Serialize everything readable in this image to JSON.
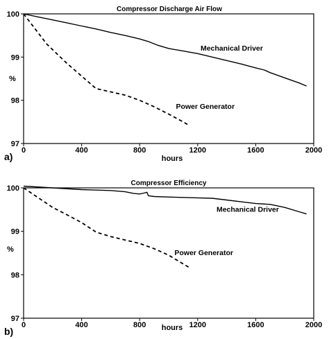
{
  "chart_data": [
    {
      "panel_label": "a)",
      "type": "line",
      "title": "Compressor Discharge Air Flow",
      "xlabel": "hours",
      "ylabel": "%",
      "xlim": [
        0,
        2000
      ],
      "ylim": [
        97,
        100
      ],
      "xticks": [
        "0",
        "400",
        "800",
        "1200",
        "1600",
        "2000"
      ],
      "yticks": [
        "97",
        "98",
        "99",
        "100"
      ],
      "grid": false,
      "series": [
        {
          "name": "Mechanical Driver",
          "style": "solid",
          "x": [
            0,
            100,
            200,
            300,
            400,
            500,
            600,
            700,
            800,
            860,
            920,
            1000,
            1100,
            1200,
            1300,
            1400,
            1500,
            1600,
            1660,
            1700,
            1800,
            1900,
            1950
          ],
          "y": [
            100,
            99.93,
            99.86,
            99.79,
            99.72,
            99.65,
            99.57,
            99.5,
            99.42,
            99.36,
            99.28,
            99.2,
            99.14,
            99.08,
            99.0,
            98.92,
            98.84,
            98.75,
            98.7,
            98.64,
            98.52,
            98.4,
            98.33
          ]
        },
        {
          "name": "Power Generator",
          "style": "dashed",
          "x": [
            0,
            160,
            300,
            500,
            700,
            800,
            900,
            1000,
            1100,
            1140
          ],
          "y": [
            100,
            99.3,
            98.85,
            98.27,
            98.12,
            98.0,
            97.85,
            97.68,
            97.5,
            97.42
          ]
        }
      ],
      "annotations": [
        {
          "text": "Mechanical Driver",
          "x": 1220,
          "y": 99.15
        },
        {
          "text": "Power Generator",
          "x": 1050,
          "y": 97.8
        }
      ]
    },
    {
      "panel_label": "b)",
      "type": "line",
      "title": "Compressor Efficiency",
      "xlabel": "hours",
      "ylabel": "%",
      "xlim": [
        0,
        2000
      ],
      "ylim": [
        97,
        100
      ],
      "xticks": [
        "0",
        "400",
        "800",
        "1200",
        "1600",
        "2000"
      ],
      "yticks": [
        "97",
        "98",
        "99",
        "100"
      ],
      "grid": false,
      "series": [
        {
          "name": "Mechanical Driver",
          "style": "solid",
          "x": [
            0,
            200,
            400,
            600,
            700,
            760,
            800,
            830,
            850,
            860,
            900,
            1000,
            1100,
            1200,
            1300,
            1400,
            1500,
            1600,
            1700,
            1800,
            1900,
            1950
          ],
          "y": [
            100.04,
            100.0,
            99.96,
            99.94,
            99.91,
            99.87,
            99.86,
            99.88,
            99.9,
            99.82,
            99.8,
            99.79,
            99.78,
            99.77,
            99.76,
            99.72,
            99.68,
            99.64,
            99.62,
            99.55,
            99.45,
            99.4
          ]
        },
        {
          "name": "Power Generator",
          "style": "dashed",
          "x": [
            0,
            200,
            300,
            400,
            500,
            600,
            700,
            800,
            900,
            1000,
            1100,
            1150
          ],
          "y": [
            100,
            99.55,
            99.38,
            99.2,
            98.98,
            98.88,
            98.8,
            98.72,
            98.6,
            98.45,
            98.25,
            98.15
          ]
        }
      ],
      "annotations": [
        {
          "text": "Mechanical Driver",
          "x": 1330,
          "y": 99.45
        },
        {
          "text": "Power Generator",
          "x": 1040,
          "y": 98.45
        }
      ]
    }
  ]
}
